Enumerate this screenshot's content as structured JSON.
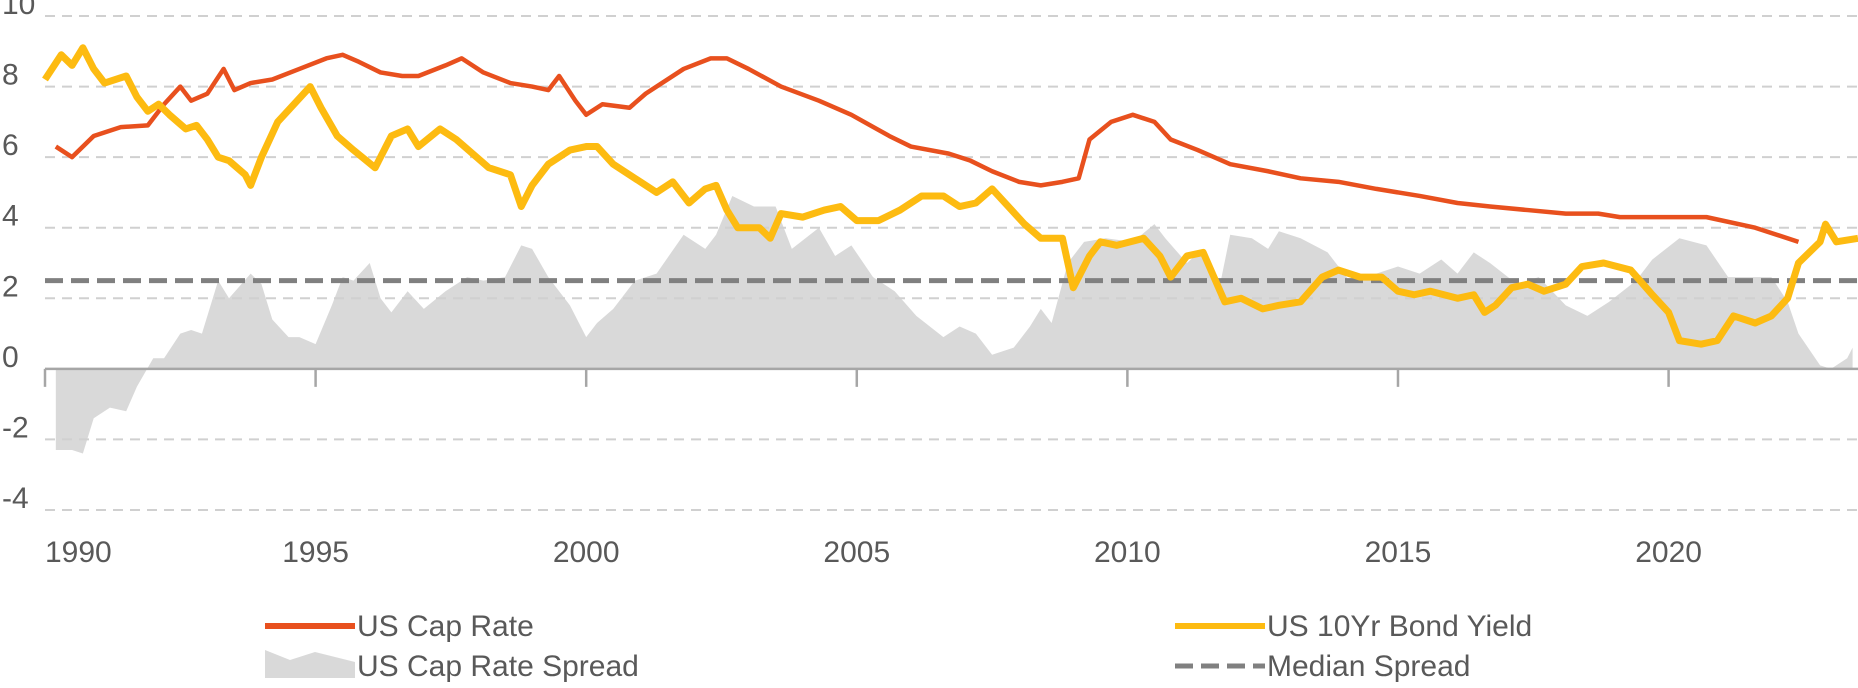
{
  "chart_data": {
    "type": "line",
    "xlim": [
      1990,
      2023.5
    ],
    "xticks": [
      1990,
      1995,
      2000,
      2005,
      2010,
      2015,
      2020
    ],
    "ylim": [
      -4,
      10
    ],
    "yticks": [
      -4,
      -2,
      0,
      2,
      4,
      6,
      8,
      10
    ],
    "grid": true,
    "series": [
      {
        "name": "US Cap Rate Spread",
        "type": "area",
        "color": "#d9d9d9",
        "x": [
          1990.2,
          1990.5,
          1990.7,
          1990.9,
          1991.2,
          1991.5,
          1991.7,
          1992.0,
          1992.2,
          1992.5,
          1992.7,
          1992.9,
          1993.2,
          1993.4,
          1993.8,
          1994.0,
          1994.2,
          1994.5,
          1994.7,
          1995.0,
          1995.3,
          1995.5,
          1995.7,
          1996.0,
          1996.2,
          1996.4,
          1996.7,
          1997.0,
          1997.4,
          1997.8,
          1998.1,
          1998.5,
          1998.8,
          1999.0,
          1999.3,
          1999.7,
          2000.0,
          2000.2,
          2000.5,
          2000.9,
          2001.3,
          2001.8,
          2002.2,
          2002.4,
          2002.7,
          2003.1,
          2003.5,
          2003.8,
          2004.3,
          2004.6,
          2004.9,
          2005.3,
          2005.7,
          2006.1,
          2006.6,
          2006.9,
          2007.2,
          2007.5,
          2007.9,
          2008.2,
          2008.4,
          2008.6,
          2008.9,
          2009.2,
          2009.6,
          2010.1,
          2010.5,
          2010.7,
          2011.1,
          2011.4,
          2011.7,
          2011.9,
          2012.3,
          2012.6,
          2012.8,
          2013.2,
          2013.7,
          2014.1,
          2014.6,
          2015.0,
          2015.4,
          2015.8,
          2016.1,
          2016.4,
          2016.7,
          2017.2,
          2017.6,
          2018.1,
          2018.5,
          2018.9,
          2019.4,
          2019.7,
          2020.2,
          2020.7,
          2021.1,
          2021.6,
          2021.9,
          2022.2,
          2022.4,
          2022.8,
          2023.0,
          2023.3,
          2023.4
        ],
        "values": [
          -2.3,
          -2.3,
          -2.4,
          -1.4,
          -1.1,
          -1.2,
          -0.5,
          0.3,
          0.3,
          1.0,
          1.1,
          1.0,
          2.5,
          2.0,
          2.7,
          2.4,
          1.4,
          0.9,
          0.9,
          0.7,
          1.8,
          2.6,
          2.5,
          3.0,
          2.0,
          1.6,
          2.2,
          1.7,
          2.2,
          2.6,
          2.5,
          2.6,
          3.5,
          3.4,
          2.6,
          1.8,
          0.9,
          1.3,
          1.7,
          2.5,
          2.7,
          3.8,
          3.4,
          3.8,
          4.9,
          4.6,
          4.6,
          3.4,
          4.0,
          3.2,
          3.5,
          2.6,
          2.2,
          1.5,
          0.9,
          1.2,
          1.0,
          0.4,
          0.6,
          1.2,
          1.7,
          1.3,
          3.0,
          3.6,
          3.7,
          3.6,
          4.1,
          3.7,
          3.0,
          3.4,
          2.3,
          3.8,
          3.7,
          3.4,
          3.9,
          3.7,
          3.3,
          2.5,
          2.7,
          2.9,
          2.7,
          3.1,
          2.7,
          3.3,
          3.0,
          2.4,
          2.6,
          1.8,
          1.5,
          1.9,
          2.5,
          3.1,
          3.7,
          3.5,
          2.6,
          2.6,
          2.6,
          1.9,
          1.0,
          0.1,
          0.0,
          0.3,
          0.6
        ]
      },
      {
        "name": "Median Spread",
        "type": "hline",
        "color": "#808080",
        "values": [
          2.5
        ]
      },
      {
        "name": "US Cap Rate",
        "type": "line",
        "color": "#e8501e",
        "x": [
          1990.2,
          1990.5,
          1990.9,
          1991.4,
          1991.9,
          1992.2,
          1992.5,
          1992.7,
          1993.0,
          1993.3,
          1993.5,
          1993.8,
          1994.2,
          1994.7,
          1995.2,
          1995.5,
          1995.8,
          1996.2,
          1996.6,
          1996.9,
          1997.4,
          1997.7,
          1998.1,
          1998.6,
          1999.0,
          1999.3,
          1999.5,
          1999.8,
          2000.0,
          2000.3,
          2000.8,
          2001.1,
          2001.8,
          2002.3,
          2002.6,
          2003.0,
          2003.6,
          2004.3,
          2004.9,
          2005.6,
          2006.0,
          2006.7,
          2007.1,
          2007.5,
          2008.0,
          2008.4,
          2008.8,
          2009.1,
          2009.3,
          2009.7,
          2010.1,
          2010.5,
          2010.8,
          2011.3,
          2011.9,
          2012.6,
          2013.2,
          2013.9,
          2014.6,
          2015.4,
          2016.1,
          2016.7,
          2017.4,
          2018.1,
          2018.7,
          2019.1,
          2020.0,
          2020.7,
          2021.6,
          2022.4
        ],
        "values": [
          6.3,
          6.0,
          6.6,
          6.85,
          6.9,
          7.5,
          8.0,
          7.6,
          7.8,
          8.5,
          7.9,
          8.1,
          8.2,
          8.5,
          8.8,
          8.9,
          8.7,
          8.4,
          8.3,
          8.3,
          8.6,
          8.8,
          8.4,
          8.1,
          8.0,
          7.9,
          8.3,
          7.6,
          7.2,
          7.5,
          7.4,
          7.8,
          8.5,
          8.8,
          8.8,
          8.5,
          8.0,
          7.6,
          7.2,
          6.6,
          6.3,
          6.1,
          5.9,
          5.6,
          5.3,
          5.2,
          5.3,
          5.4,
          6.5,
          7.0,
          7.2,
          7.0,
          6.5,
          6.2,
          5.8,
          5.6,
          5.4,
          5.3,
          5.1,
          4.9,
          4.7,
          4.6,
          4.5,
          4.4,
          4.4,
          4.3,
          4.3,
          4.3,
          4.0,
          3.6
        ]
      },
      {
        "name": "US 10Yr Bond Yield",
        "type": "line",
        "color": "#fdbb11",
        "x": [
          1990.0,
          1990.3,
          1990.5,
          1990.7,
          1990.9,
          1991.1,
          1991.5,
          1991.7,
          1991.9,
          1992.1,
          1992.3,
          1992.6,
          1992.8,
          1993.0,
          1993.2,
          1993.4,
          1993.7,
          1993.8,
          1994.0,
          1994.3,
          1994.6,
          1994.9,
          1995.1,
          1995.4,
          1995.7,
          1996.1,
          1996.4,
          1996.7,
          1996.9,
          1997.3,
          1997.6,
          1997.9,
          1998.2,
          1998.6,
          1998.8,
          1999.0,
          1999.3,
          1999.7,
          2000.0,
          2000.2,
          2000.5,
          2001.0,
          2001.3,
          2001.6,
          2001.9,
          2002.2,
          2002.4,
          2002.6,
          2002.8,
          2003.2,
          2003.4,
          2003.6,
          2004.0,
          2004.4,
          2004.7,
          2005.0,
          2005.4,
          2005.8,
          2006.2,
          2006.6,
          2006.9,
          2007.2,
          2007.5,
          2007.8,
          2008.1,
          2008.4,
          2008.8,
          2009.0,
          2009.3,
          2009.5,
          2009.8,
          2010.3,
          2010.6,
          2010.8,
          2011.1,
          2011.4,
          2011.6,
          2011.8,
          2012.1,
          2012.5,
          2012.8,
          2013.2,
          2013.6,
          2013.9,
          2014.3,
          2014.7,
          2015.0,
          2015.3,
          2015.6,
          2016.1,
          2016.4,
          2016.6,
          2016.8,
          2017.1,
          2017.4,
          2017.7,
          2018.1,
          2018.4,
          2018.8,
          2019.3,
          2019.7,
          2020.0,
          2020.2,
          2020.6,
          2020.9,
          2021.2,
          2021.6,
          2021.9,
          2022.2,
          2022.4,
          2022.8,
          2022.9,
          2023.1,
          2023.5
        ],
        "values": [
          8.2,
          8.9,
          8.6,
          9.1,
          8.5,
          8.1,
          8.3,
          7.7,
          7.3,
          7.5,
          7.2,
          6.8,
          6.9,
          6.5,
          6.0,
          5.9,
          5.5,
          5.2,
          6.0,
          7.0,
          7.5,
          8.0,
          7.4,
          6.6,
          6.2,
          5.7,
          6.6,
          6.8,
          6.3,
          6.8,
          6.5,
          6.1,
          5.7,
          5.5,
          4.6,
          5.2,
          5.8,
          6.2,
          6.3,
          6.3,
          5.8,
          5.3,
          5.0,
          5.3,
          4.7,
          5.1,
          5.2,
          4.5,
          4.0,
          4.0,
          3.7,
          4.4,
          4.3,
          4.5,
          4.6,
          4.2,
          4.2,
          4.5,
          4.9,
          4.9,
          4.6,
          4.7,
          5.1,
          4.6,
          4.1,
          3.7,
          3.7,
          2.3,
          3.2,
          3.6,
          3.5,
          3.7,
          3.2,
          2.6,
          3.2,
          3.3,
          2.6,
          1.9,
          2.0,
          1.7,
          1.8,
          1.9,
          2.6,
          2.8,
          2.6,
          2.6,
          2.2,
          2.1,
          2.2,
          2.0,
          2.1,
          1.6,
          1.8,
          2.3,
          2.4,
          2.2,
          2.4,
          2.9,
          3.0,
          2.8,
          2.1,
          1.6,
          0.8,
          0.7,
          0.8,
          1.5,
          1.3,
          1.5,
          2.0,
          3.0,
          3.6,
          4.1,
          3.6,
          3.7
        ]
      }
    ]
  }
}
